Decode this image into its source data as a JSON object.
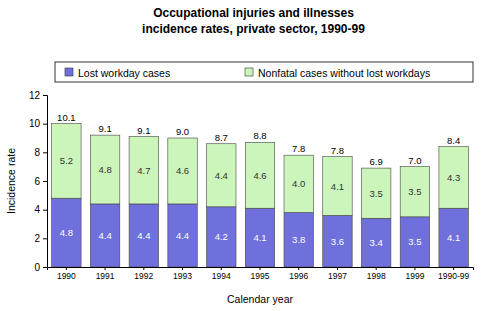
{
  "chart_data": {
    "type": "bar",
    "title": [
      "Occupational injuries and illnesses",
      "incidence rates, private sector, 1990-99"
    ],
    "x_label": "Calendar year",
    "y_label": "Incidence rate",
    "categories": [
      "1990",
      "1991",
      "1992",
      "1993",
      "1994",
      "1995",
      "1996",
      "1997",
      "1998",
      "1999",
      "1990-99"
    ],
    "series": [
      {
        "name": "Lost workday cases",
        "color": "#7070dc",
        "values": [
          4.8,
          4.4,
          4.4,
          4.4,
          4.2,
          4.1,
          3.8,
          3.6,
          3.4,
          3.5,
          4.1
        ],
        "value_labels": [
          "4.8",
          "4.4",
          "4.4",
          "4.4",
          "4.2",
          "4.1",
          "3.8",
          "3.6",
          "3.4",
          "3.5",
          "4.1"
        ]
      },
      {
        "name": "Nonfatal cases without lost workdays",
        "color": "#ccf5bc",
        "values": [
          5.2,
          4.8,
          4.7,
          4.6,
          4.4,
          4.6,
          4.0,
          4.1,
          3.5,
          3.5,
          4.3
        ],
        "value_labels": [
          "5.2",
          "4.8",
          "4.7",
          "4.6",
          "4.4",
          "4.6",
          "4.0",
          "4.1",
          "3.5",
          "3.5",
          "4.3"
        ]
      }
    ],
    "totals": [
      10.1,
      9.1,
      9.1,
      9.0,
      8.7,
      8.8,
      7.8,
      7.8,
      6.9,
      7.0,
      8.4
    ],
    "total_labels": [
      "10.1",
      "9.1",
      "9.1",
      "9.0",
      "8.7",
      "8.8",
      "7.8",
      "7.8",
      "6.9",
      "7.0",
      "8.4"
    ],
    "ylim": [
      0,
      12
    ],
    "yticks": [
      0,
      2,
      4,
      6,
      8,
      10,
      12
    ],
    "stacked": true,
    "data_labels": true,
    "legend": "top",
    "grid": false
  }
}
